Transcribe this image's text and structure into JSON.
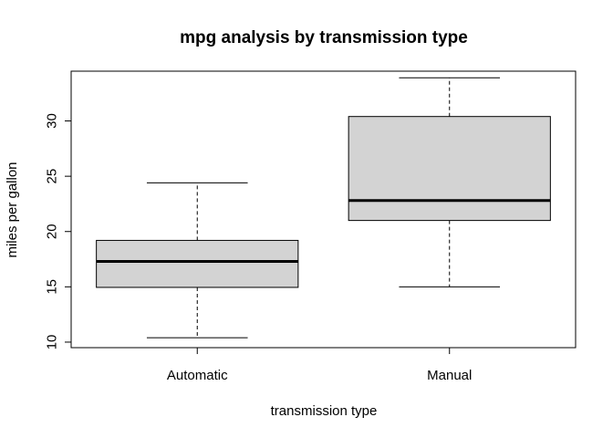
{
  "chart_data": {
    "type": "boxplot",
    "title": "mpg analysis by transmission type",
    "xlabel": "transmission type",
    "ylabel": "miles per gallon",
    "ylim": [
      9.5,
      34.5
    ],
    "yticks": [
      10,
      15,
      20,
      25,
      30
    ],
    "categories": [
      "Automatic",
      "Manual"
    ],
    "boxes": [
      {
        "category": "Automatic",
        "whisker_low": 10.4,
        "q1": 14.95,
        "median": 17.3,
        "q3": 19.2,
        "whisker_high": 24.4
      },
      {
        "category": "Manual",
        "whisker_low": 15.0,
        "q1": 21.0,
        "median": 22.8,
        "q3": 30.4,
        "whisker_high": 33.9
      }
    ],
    "box_fill": "#d3d3d3",
    "line_color": "#000000",
    "grid": false,
    "legend": "none"
  }
}
